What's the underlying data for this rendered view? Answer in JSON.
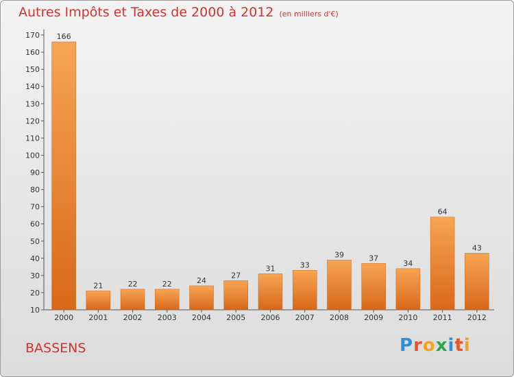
{
  "header": {
    "title": "Autres Impôts et Taxes de 2000 à 2012",
    "unit": "(en milliers d'€)"
  },
  "footer": {
    "commune": "BASSENS",
    "logo": "Proxiti"
  },
  "colors": {
    "accent": "#d6322d",
    "bar_top": "#f7a553",
    "bar_bottom": "#d8681a"
  },
  "chart_data": {
    "type": "bar",
    "title": "Autres Impôts et Taxes de 2000 à 2012",
    "subtitle": "(en milliers d'€)",
    "xlabel": "",
    "ylabel": "",
    "categories": [
      "2000",
      "2001",
      "2002",
      "2003",
      "2004",
      "2005",
      "2006",
      "2007",
      "2008",
      "2009",
      "2010",
      "2011",
      "2012"
    ],
    "values": [
      166,
      21,
      22,
      22,
      24,
      27,
      31,
      33,
      39,
      37,
      34,
      64,
      43
    ],
    "ylim": [
      10,
      170
    ],
    "yticks": [
      10,
      20,
      30,
      40,
      50,
      60,
      70,
      80,
      90,
      100,
      110,
      120,
      130,
      140,
      150,
      160,
      170
    ],
    "grid": false,
    "legend": "none",
    "data_labels": true
  }
}
